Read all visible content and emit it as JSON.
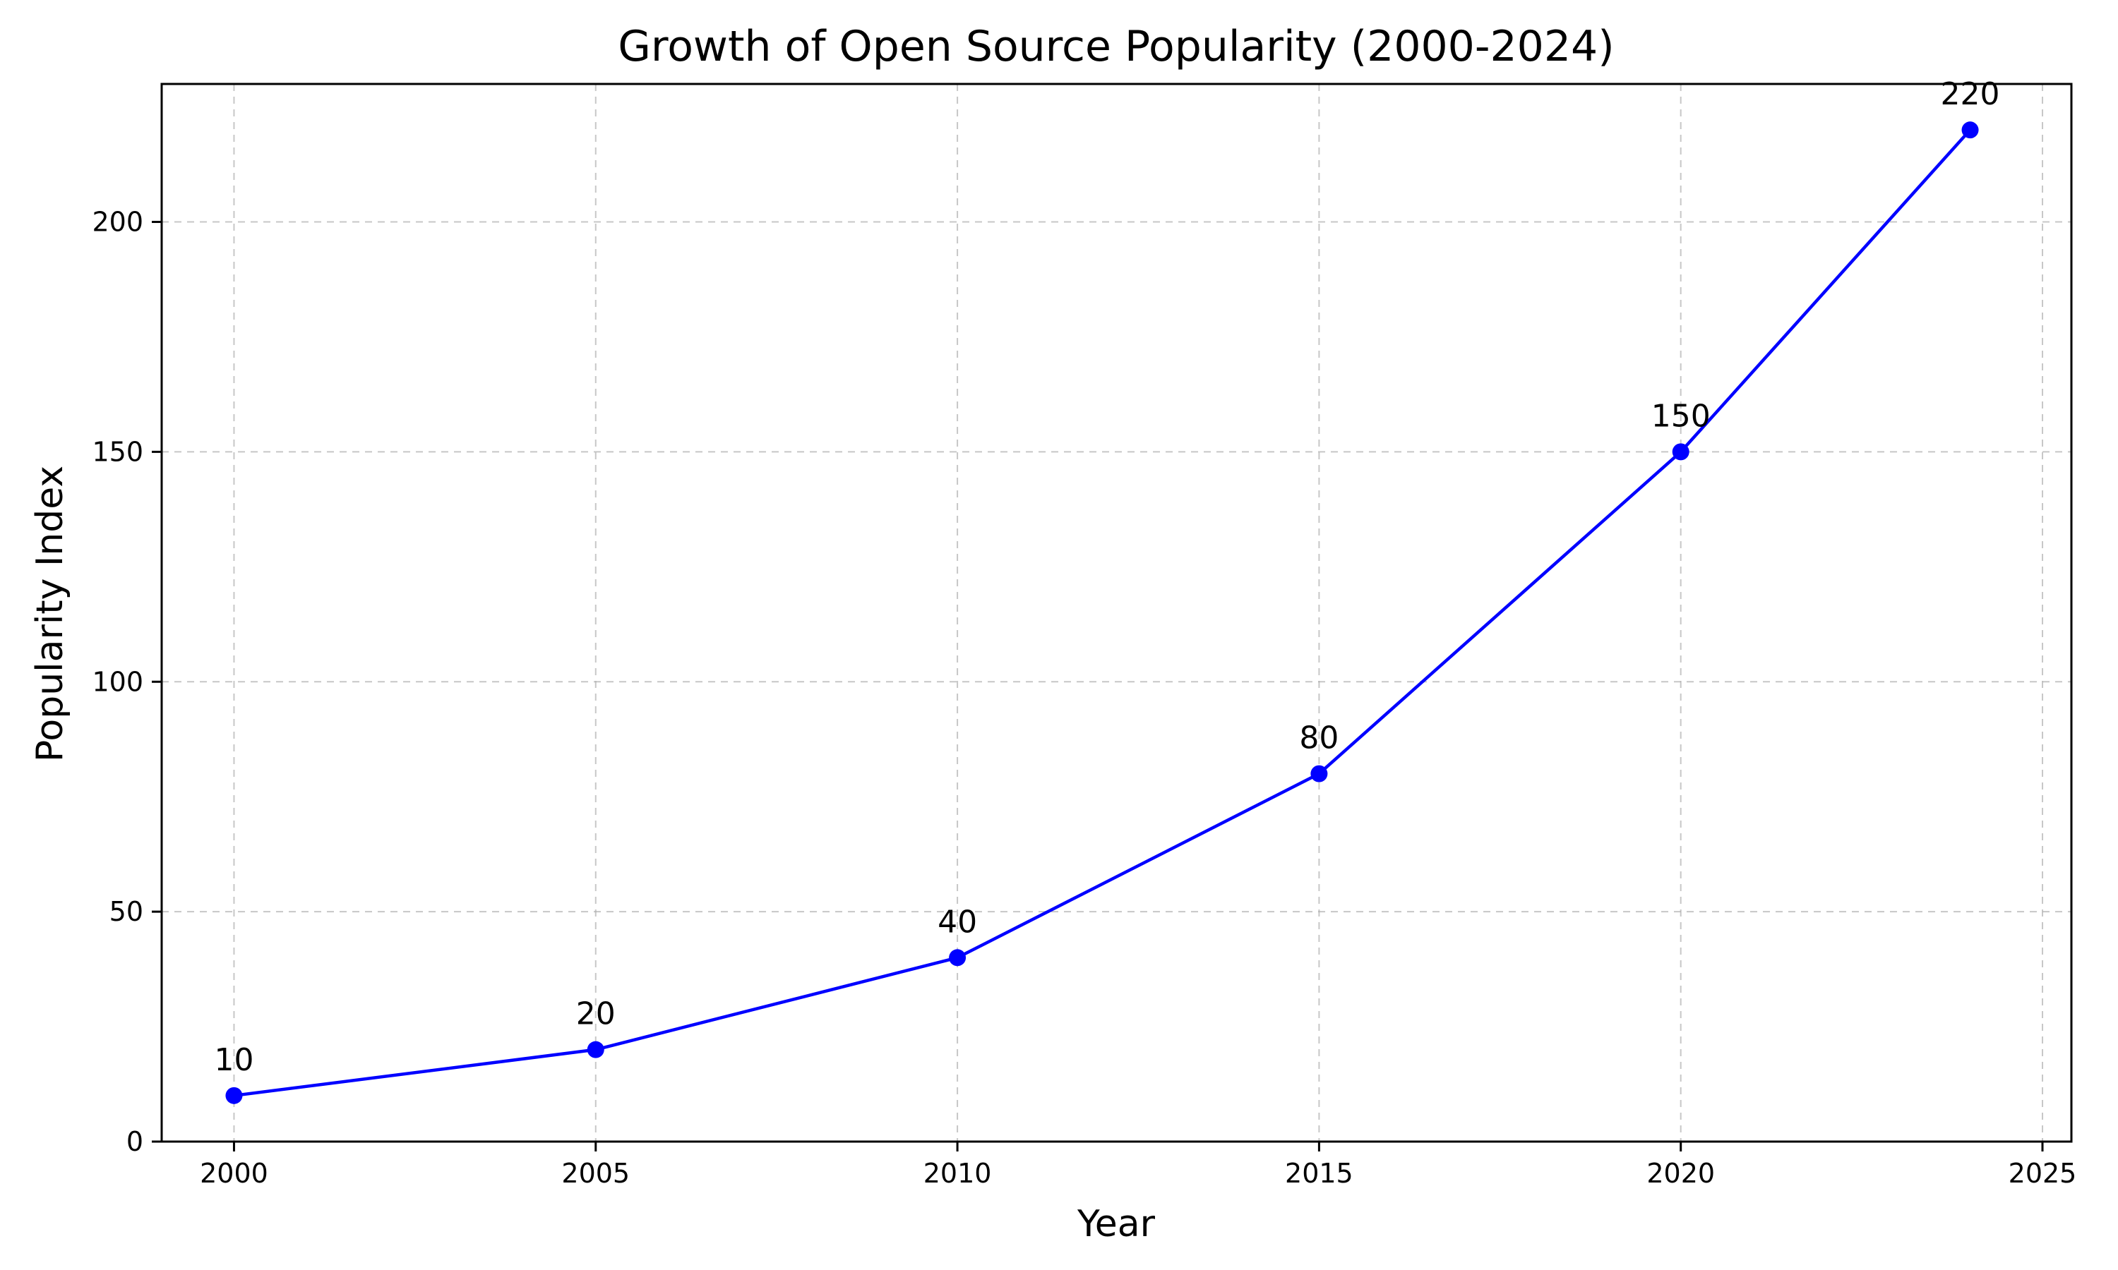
{
  "chart_data": {
    "type": "line",
    "title": "Growth of Open Source Popularity (2000-2024)",
    "xlabel": "Year",
    "ylabel": "Popularity Index",
    "xlim": [
      1999,
      2025.4
    ],
    "ylim": [
      0,
      230
    ],
    "x_ticks": [
      2000,
      2005,
      2010,
      2015,
      2020,
      2025
    ],
    "y_ticks": [
      0,
      50,
      100,
      150,
      200
    ],
    "grid": true,
    "series": [
      {
        "x": [
          2000,
          2005,
          2010,
          2015,
          2020,
          2024
        ],
        "values": [
          10,
          20,
          40,
          80,
          150,
          220
        ],
        "color": "#0000ff",
        "marker": "circle",
        "data_labels": [
          "10",
          "20",
          "40",
          "80",
          "150",
          "220"
        ]
      }
    ]
  }
}
